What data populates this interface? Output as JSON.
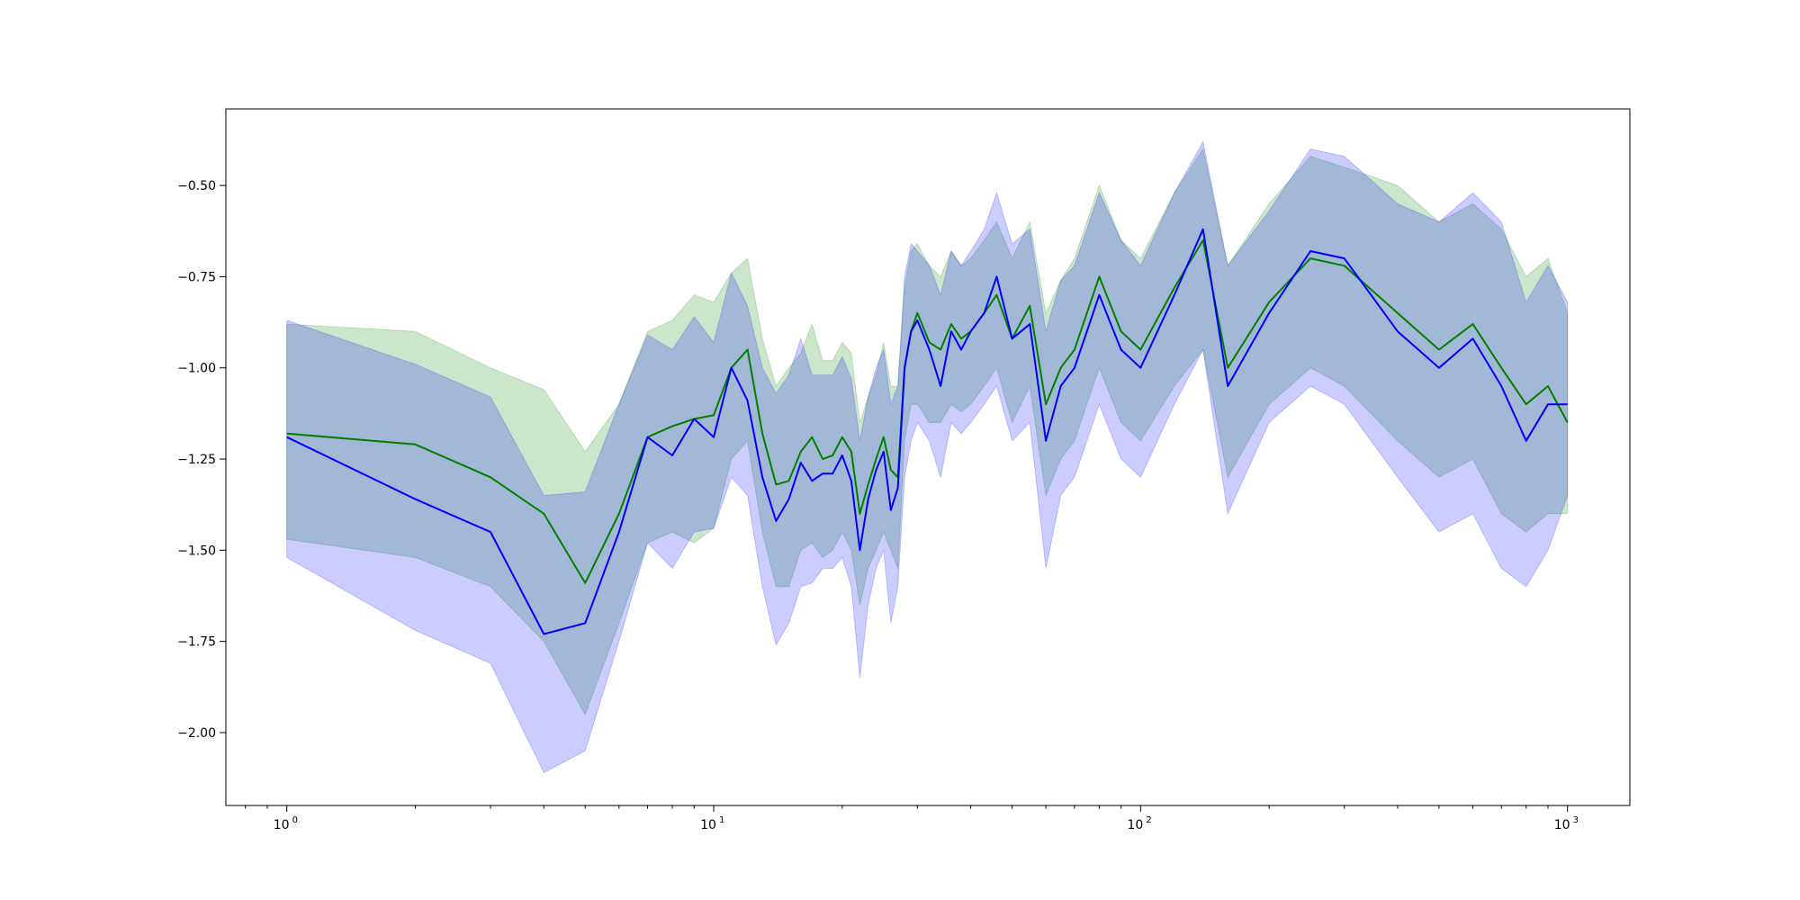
{
  "chart_data": {
    "type": "line",
    "title": "",
    "xlabel": "",
    "ylabel": "",
    "x_scale": "log",
    "xlim": [
      0.72,
      1400
    ],
    "ylim": [
      -2.2,
      -0.29
    ],
    "grid": false,
    "legend": "none",
    "x_ticks": [
      {
        "value": 1,
        "base": "10",
        "exp": "0"
      },
      {
        "value": 10,
        "base": "10",
        "exp": "1"
      },
      {
        "value": 100,
        "base": "10",
        "exp": "2"
      },
      {
        "value": 1000,
        "base": "10",
        "exp": "3"
      }
    ],
    "y_ticks": [
      {
        "value": -0.5,
        "label": "−0.50"
      },
      {
        "value": -0.75,
        "label": "−0.75"
      },
      {
        "value": -1.0,
        "label": "−1.00"
      },
      {
        "value": -1.25,
        "label": "−1.25"
      },
      {
        "value": -1.5,
        "label": "−1.50"
      },
      {
        "value": -1.75,
        "label": "−1.75"
      },
      {
        "value": -2.0,
        "label": "−2.00"
      }
    ],
    "series": [
      {
        "color": "#008000",
        "band_color": "#008000",
        "band_opacity": 0.2,
        "x": [
          1,
          2,
          3,
          4,
          5,
          6,
          7,
          8,
          9,
          10,
          11,
          12,
          13,
          14,
          15,
          16,
          17,
          18,
          19,
          20,
          21,
          22,
          23,
          24,
          25,
          26,
          27,
          28,
          29,
          30,
          32,
          34,
          36,
          38,
          40,
          43,
          46,
          50,
          55,
          60,
          65,
          70,
          80,
          90,
          100,
          120,
          140,
          160,
          200,
          250,
          300,
          400,
          500,
          600,
          700,
          800,
          900,
          1000
        ],
        "mean": [
          -1.18,
          -1.21,
          -1.3,
          -1.4,
          -1.59,
          -1.4,
          -1.19,
          -1.16,
          -1.14,
          -1.13,
          -1.0,
          -0.95,
          -1.18,
          -1.32,
          -1.31,
          -1.23,
          -1.19,
          -1.25,
          -1.24,
          -1.19,
          -1.23,
          -1.4,
          -1.32,
          -1.25,
          -1.19,
          -1.28,
          -1.3,
          -1.0,
          -0.9,
          -0.85,
          -0.93,
          -0.95,
          -0.88,
          -0.92,
          -0.9,
          -0.85,
          -0.8,
          -0.92,
          -0.83,
          -1.1,
          -1.0,
          -0.95,
          -0.75,
          -0.9,
          -0.95,
          -0.78,
          -0.65,
          -1.0,
          -0.82,
          -0.7,
          -0.72,
          -0.85,
          -0.95,
          -0.88,
          -1.0,
          -1.1,
          -1.05,
          -1.15
        ],
        "lower": [
          -1.47,
          -1.52,
          -1.6,
          -1.75,
          -1.95,
          -1.7,
          -1.48,
          -1.45,
          -1.48,
          -1.44,
          -1.25,
          -1.2,
          -1.45,
          -1.6,
          -1.6,
          -1.5,
          -1.48,
          -1.52,
          -1.5,
          -1.45,
          -1.5,
          -1.65,
          -1.55,
          -1.5,
          -1.45,
          -1.5,
          -1.55,
          -1.2,
          -1.1,
          -1.1,
          -1.15,
          -1.15,
          -1.1,
          -1.12,
          -1.1,
          -1.05,
          -1.0,
          -1.15,
          -1.05,
          -1.35,
          -1.25,
          -1.2,
          -1.0,
          -1.15,
          -1.2,
          -1.05,
          -0.95,
          -1.3,
          -1.1,
          -1.0,
          -1.05,
          -1.2,
          -1.3,
          -1.25,
          -1.4,
          -1.45,
          -1.4,
          -1.4
        ],
        "upper": [
          -0.88,
          -0.9,
          -1.0,
          -1.06,
          -1.23,
          -1.1,
          -0.9,
          -0.87,
          -0.8,
          -0.82,
          -0.74,
          -0.7,
          -0.92,
          -1.05,
          -1.0,
          -0.96,
          -0.88,
          -0.98,
          -0.98,
          -0.93,
          -0.96,
          -1.15,
          -1.08,
          -1.02,
          -0.93,
          -1.05,
          -1.05,
          -0.78,
          -0.68,
          -0.66,
          -0.72,
          -0.75,
          -0.68,
          -0.72,
          -0.7,
          -0.65,
          -0.6,
          -0.7,
          -0.6,
          -0.85,
          -0.76,
          -0.7,
          -0.5,
          -0.65,
          -0.7,
          -0.52,
          -0.4,
          -0.72,
          -0.55,
          -0.42,
          -0.45,
          -0.5,
          -0.6,
          -0.55,
          -0.62,
          -0.75,
          -0.7,
          -0.85
        ]
      },
      {
        "color": "#0000ff",
        "band_color": "#0000ff",
        "band_opacity": 0.2,
        "x": [
          1,
          2,
          3,
          4,
          5,
          6,
          7,
          8,
          9,
          10,
          11,
          12,
          13,
          14,
          15,
          16,
          17,
          18,
          19,
          20,
          21,
          22,
          23,
          24,
          25,
          26,
          27,
          28,
          29,
          30,
          32,
          34,
          36,
          38,
          40,
          43,
          46,
          50,
          55,
          60,
          65,
          70,
          80,
          90,
          100,
          120,
          140,
          160,
          200,
          250,
          300,
          400,
          500,
          600,
          700,
          800,
          900,
          1000
        ],
        "mean": [
          -1.19,
          -1.36,
          -1.45,
          -1.73,
          -1.7,
          -1.45,
          -1.19,
          -1.24,
          -1.14,
          -1.19,
          -1.0,
          -1.09,
          -1.3,
          -1.42,
          -1.36,
          -1.26,
          -1.31,
          -1.29,
          -1.29,
          -1.24,
          -1.31,
          -1.5,
          -1.36,
          -1.28,
          -1.23,
          -1.39,
          -1.33,
          -1.0,
          -0.9,
          -0.87,
          -0.95,
          -1.05,
          -0.9,
          -0.95,
          -0.9,
          -0.85,
          -0.75,
          -0.92,
          -0.88,
          -1.2,
          -1.05,
          -1.0,
          -0.8,
          -0.95,
          -1.0,
          -0.8,
          -0.62,
          -1.05,
          -0.85,
          -0.68,
          -0.7,
          -0.9,
          -1.0,
          -0.92,
          -1.05,
          -1.2,
          -1.1,
          -1.1
        ],
        "lower": [
          -1.52,
          -1.72,
          -1.81,
          -2.11,
          -2.05,
          -1.75,
          -1.48,
          -1.55,
          -1.45,
          -1.44,
          -1.3,
          -1.35,
          -1.6,
          -1.76,
          -1.7,
          -1.6,
          -1.59,
          -1.55,
          -1.55,
          -1.52,
          -1.6,
          -1.85,
          -1.65,
          -1.55,
          -1.5,
          -1.7,
          -1.6,
          -1.3,
          -1.2,
          -1.15,
          -1.2,
          -1.3,
          -1.15,
          -1.18,
          -1.15,
          -1.1,
          -1.05,
          -1.2,
          -1.15,
          -1.55,
          -1.35,
          -1.3,
          -1.1,
          -1.25,
          -1.3,
          -1.1,
          -0.95,
          -1.4,
          -1.15,
          -1.05,
          -1.1,
          -1.3,
          -1.45,
          -1.4,
          -1.55,
          -1.6,
          -1.5,
          -1.35
        ],
        "upper": [
          -0.87,
          -0.99,
          -1.08,
          -1.35,
          -1.34,
          -1.1,
          -0.91,
          -0.95,
          -0.86,
          -0.93,
          -0.74,
          -0.83,
          -1.0,
          -1.07,
          -1.02,
          -0.92,
          -1.02,
          -1.02,
          -1.02,
          -0.97,
          -1.03,
          -1.2,
          -1.08,
          -1.0,
          -0.95,
          -1.1,
          -1.05,
          -0.75,
          -0.66,
          -0.68,
          -0.72,
          -0.8,
          -0.68,
          -0.72,
          -0.68,
          -0.62,
          -0.52,
          -0.66,
          -0.62,
          -0.9,
          -0.76,
          -0.72,
          -0.52,
          -0.65,
          -0.72,
          -0.52,
          -0.38,
          -0.72,
          -0.57,
          -0.4,
          -0.42,
          -0.55,
          -0.6,
          -0.52,
          -0.6,
          -0.82,
          -0.72,
          -0.82
        ]
      }
    ]
  }
}
